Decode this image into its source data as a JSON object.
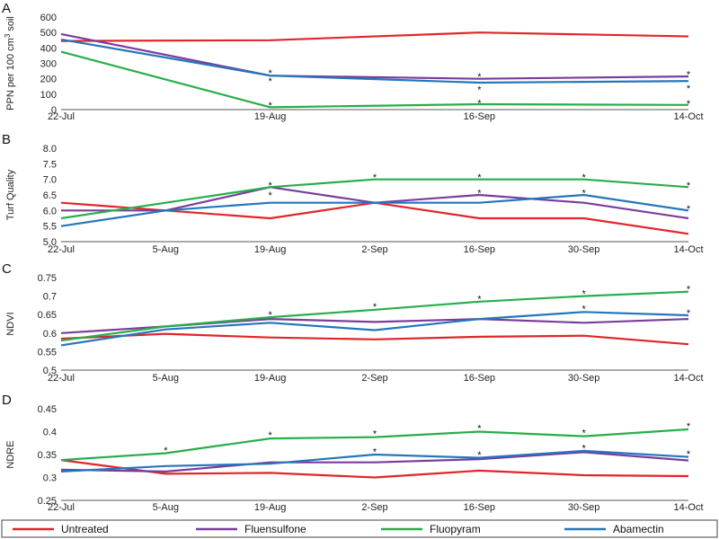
{
  "series_styles": [
    {
      "name": "Untreated",
      "color": "#e0262b"
    },
    {
      "name": "Fluensulfone",
      "color": "#7a3d9c"
    },
    {
      "name": "Fluopyram",
      "color": "#27ae4b"
    },
    {
      "name": "Abamectin",
      "color": "#2576bb"
    }
  ],
  "chart_data": [
    {
      "type": "line",
      "panel": "A",
      "ylabel": "PPN per 100 cm³ soil",
      "ylim": [
        0,
        600
      ],
      "yticks": [
        "0",
        "100",
        "200",
        "300",
        "400",
        "500",
        "600"
      ],
      "categories": [
        "22-Jul",
        "19-Aug",
        "16-Sep",
        "14-Oct"
      ],
      "series": [
        {
          "name": "Untreated",
          "values": [
            445,
            450,
            500,
            475
          ]
        },
        {
          "name": "Fluensulfone",
          "values": [
            490,
            220,
            200,
            215
          ]
        },
        {
          "name": "Fluopyram",
          "values": [
            375,
            15,
            35,
            30
          ]
        },
        {
          "name": "Abamectin",
          "values": [
            455,
            220,
            175,
            185
          ]
        }
      ],
      "annotations": [
        {
          "category": "19-Aug",
          "value": 240,
          "text": "*"
        },
        {
          "category": "19-Aug",
          "value": 185,
          "text": "*"
        },
        {
          "category": "19-Aug",
          "value": 30,
          "text": "*"
        },
        {
          "category": "16-Sep",
          "value": 215,
          "text": "*"
        },
        {
          "category": "16-Sep",
          "value": 130,
          "text": "*"
        },
        {
          "category": "16-Sep",
          "value": 45,
          "text": "*"
        },
        {
          "category": "14-Oct",
          "value": 230,
          "text": "*"
        },
        {
          "category": "14-Oct",
          "value": 140,
          "text": "*"
        },
        {
          "category": "14-Oct",
          "value": 40,
          "text": "*"
        }
      ]
    },
    {
      "type": "line",
      "panel": "B",
      "ylabel": "Turf Quality",
      "ylim": [
        5.0,
        8.0
      ],
      "yticks": [
        "5.0",
        "5.5",
        "6.0",
        "6.5",
        "7.0",
        "7.5",
        "8.0"
      ],
      "categories": [
        "22-Jul",
        "5-Aug",
        "19-Aug",
        "2-Sep",
        "16-Sep",
        "30-Sep",
        "14-Oct"
      ],
      "series": [
        {
          "name": "Untreated",
          "values": [
            6.25,
            6.0,
            5.75,
            6.25,
            5.75,
            5.75,
            5.25
          ]
        },
        {
          "name": "Fluensulfone",
          "values": [
            6.0,
            6.0,
            6.75,
            6.25,
            6.5,
            6.25,
            5.75
          ]
        },
        {
          "name": "Fluopyram",
          "values": [
            5.75,
            6.25,
            6.75,
            7.0,
            7.0,
            7.0,
            6.75
          ]
        },
        {
          "name": "Abamectin",
          "values": [
            5.5,
            6.0,
            6.25,
            6.25,
            6.25,
            6.5,
            6.0
          ]
        }
      ],
      "annotations": [
        {
          "category": "19-Aug",
          "value": 6.82,
          "text": "*"
        },
        {
          "category": "19-Aug",
          "value": 6.5,
          "text": "*"
        },
        {
          "category": "2-Sep",
          "value": 7.08,
          "text": "*"
        },
        {
          "category": "16-Sep",
          "value": 7.08,
          "text": "*"
        },
        {
          "category": "16-Sep",
          "value": 6.57,
          "text": "*"
        },
        {
          "category": "30-Sep",
          "value": 7.08,
          "text": "*"
        },
        {
          "category": "30-Sep",
          "value": 6.57,
          "text": "*"
        },
        {
          "category": "14-Oct",
          "value": 6.82,
          "text": "*"
        },
        {
          "category": "14-Oct",
          "value": 6.07,
          "text": "*"
        }
      ]
    },
    {
      "type": "line",
      "panel": "C",
      "ylabel": "NDVI",
      "ylim": [
        0.5,
        0.75
      ],
      "yticks": [
        "0.5",
        "0.55",
        "0.6",
        "0.65",
        "0.7",
        "0.75"
      ],
      "categories": [
        "22-Jul",
        "5-Aug",
        "19-Aug",
        "2-Sep",
        "16-Sep",
        "30-Sep",
        "14-Oct"
      ],
      "series": [
        {
          "name": "Untreated",
          "values": [
            0.585,
            0.598,
            0.588,
            0.583,
            0.59,
            0.593,
            0.57
          ]
        },
        {
          "name": "Fluensulfone",
          "values": [
            0.6,
            0.618,
            0.638,
            0.63,
            0.638,
            0.628,
            0.638
          ]
        },
        {
          "name": "Fluopyram",
          "values": [
            0.58,
            0.618,
            0.643,
            0.663,
            0.685,
            0.7,
            0.712
          ]
        },
        {
          "name": "Abamectin",
          "values": [
            0.567,
            0.61,
            0.628,
            0.608,
            0.638,
            0.657,
            0.648
          ]
        }
      ],
      "annotations": [
        {
          "category": "19-Aug",
          "value": 0.65,
          "text": "*"
        },
        {
          "category": "2-Sep",
          "value": 0.672,
          "text": "*"
        },
        {
          "category": "16-Sep",
          "value": 0.693,
          "text": "*"
        },
        {
          "category": "30-Sep",
          "value": 0.708,
          "text": "*"
        },
        {
          "category": "30-Sep",
          "value": 0.666,
          "text": "*"
        },
        {
          "category": "14-Oct",
          "value": 0.72,
          "text": "*"
        },
        {
          "category": "14-Oct",
          "value": 0.655,
          "text": "*"
        }
      ]
    },
    {
      "type": "line",
      "panel": "D",
      "ylabel": "NDRE",
      "ylim": [
        0.25,
        0.45
      ],
      "yticks": [
        "0.25",
        "0.3",
        "0.35",
        "0.4",
        "0.45"
      ],
      "categories": [
        "22-Jul",
        "5-Aug",
        "19-Aug",
        "2-Sep",
        "16-Sep",
        "30-Sep",
        "14-Oct"
      ],
      "series": [
        {
          "name": "Untreated",
          "values": [
            0.338,
            0.308,
            0.31,
            0.3,
            0.315,
            0.305,
            0.303
          ]
        },
        {
          "name": "Fluensulfone",
          "values": [
            0.317,
            0.313,
            0.333,
            0.333,
            0.34,
            0.355,
            0.337
          ]
        },
        {
          "name": "Fluopyram",
          "values": [
            0.338,
            0.353,
            0.385,
            0.388,
            0.4,
            0.39,
            0.405
          ]
        },
        {
          "name": "Abamectin",
          "values": [
            0.313,
            0.325,
            0.33,
            0.35,
            0.343,
            0.358,
            0.345
          ]
        }
      ],
      "annotations": [
        {
          "category": "5-Aug",
          "value": 0.36,
          "text": "*"
        },
        {
          "category": "19-Aug",
          "value": 0.393,
          "text": "*"
        },
        {
          "category": "2-Sep",
          "value": 0.396,
          "text": "*"
        },
        {
          "category": "2-Sep",
          "value": 0.357,
          "text": "*"
        },
        {
          "category": "16-Sep",
          "value": 0.408,
          "text": "*"
        },
        {
          "category": "16-Sep",
          "value": 0.35,
          "text": "*"
        },
        {
          "category": "30-Sep",
          "value": 0.398,
          "text": "*"
        },
        {
          "category": "30-Sep",
          "value": 0.365,
          "text": "*"
        },
        {
          "category": "14-Oct",
          "value": 0.413,
          "text": "*"
        },
        {
          "category": "14-Oct",
          "value": 0.352,
          "text": "*"
        }
      ]
    }
  ]
}
